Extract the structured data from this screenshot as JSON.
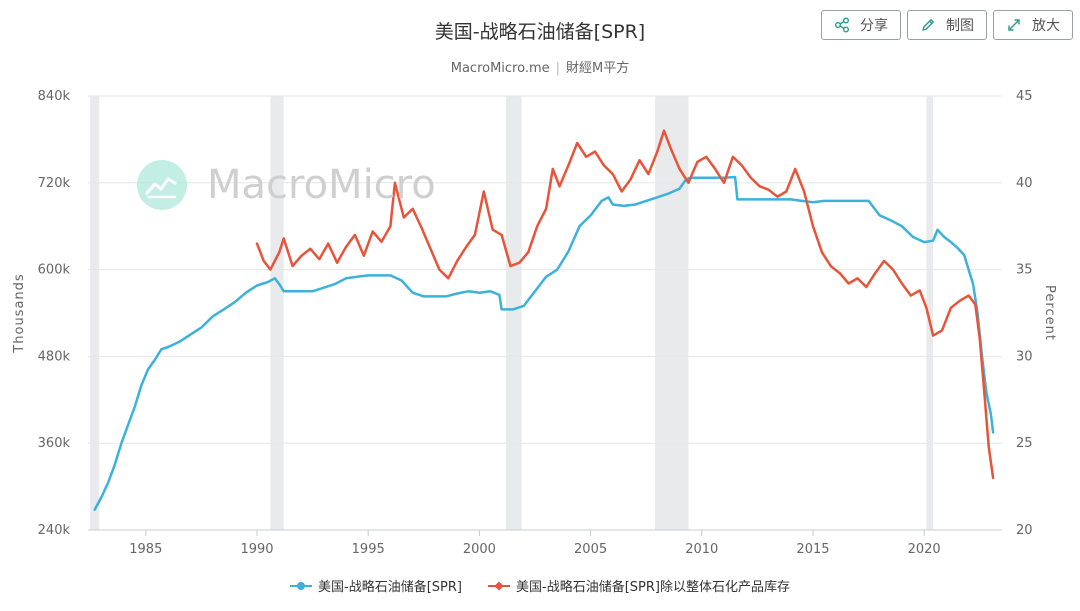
{
  "title": "美国-战略石油储备[SPR]",
  "subtitle": {
    "site": "MacroMicro.me",
    "separator": "|",
    "brand": "財經M平方"
  },
  "watermark": "MacroMicro",
  "toolbar": {
    "share_label": "分享",
    "chart_label": "制图",
    "enlarge_label": "放大"
  },
  "legend": [
    {
      "name": "美国-战略石油储备[SPR]",
      "color": "#3cb1dc"
    },
    {
      "name": "美国-战略石油储备[SPR]除以整体石化产品库存",
      "color": "#e8543a"
    }
  ],
  "chart_data": {
    "type": "line",
    "x_axis": {
      "ticks": [
        "1985",
        "1990",
        "1995",
        "2000",
        "2005",
        "2010",
        "2015",
        "2020"
      ],
      "range": [
        1982.4,
        2023.5
      ]
    },
    "y_left": {
      "label": "Thousands",
      "ticks": [
        "240k",
        "360k",
        "480k",
        "600k",
        "720k",
        "840k"
      ],
      "range": [
        240,
        840
      ]
    },
    "y_right": {
      "label": "Percent",
      "ticks": [
        "20",
        "25",
        "30",
        "35",
        "40",
        "45"
      ],
      "range": [
        20,
        45
      ]
    },
    "recession_bands": [
      [
        1982.5,
        1982.9
      ],
      [
        1990.6,
        1991.2
      ],
      [
        2001.2,
        2001.9
      ],
      [
        2007.9,
        2009.4
      ],
      [
        2020.1,
        2020.4
      ]
    ],
    "series": [
      {
        "name": "美国-战略石油储备[SPR]",
        "axis": "left",
        "color": "#3cb1dc",
        "points": [
          [
            1982.7,
            268
          ],
          [
            1983.0,
            285
          ],
          [
            1983.3,
            305
          ],
          [
            1983.6,
            330
          ],
          [
            1983.9,
            360
          ],
          [
            1984.2,
            385
          ],
          [
            1984.5,
            410
          ],
          [
            1984.8,
            440
          ],
          [
            1985.1,
            462
          ],
          [
            1985.4,
            475
          ],
          [
            1985.7,
            490
          ],
          [
            1986.0,
            493
          ],
          [
            1986.5,
            500
          ],
          [
            1987.0,
            510
          ],
          [
            1987.5,
            520
          ],
          [
            1988.0,
            535
          ],
          [
            1988.5,
            545
          ],
          [
            1989.0,
            555
          ],
          [
            1989.5,
            568
          ],
          [
            1990.0,
            578
          ],
          [
            1990.5,
            583
          ],
          [
            1990.8,
            588
          ],
          [
            1991.0,
            580
          ],
          [
            1991.2,
            570
          ],
          [
            1992.0,
            570
          ],
          [
            1992.5,
            570
          ],
          [
            1993.0,
            575
          ],
          [
            1993.5,
            580
          ],
          [
            1994.0,
            588
          ],
          [
            1994.5,
            590
          ],
          [
            1995.0,
            592
          ],
          [
            1996.0,
            592
          ],
          [
            1996.5,
            585
          ],
          [
            1997.0,
            568
          ],
          [
            1997.5,
            563
          ],
          [
            1998.0,
            563
          ],
          [
            1998.5,
            563
          ],
          [
            1999.0,
            567
          ],
          [
            1999.5,
            570
          ],
          [
            2000.0,
            568
          ],
          [
            2000.5,
            570
          ],
          [
            2000.9,
            565
          ],
          [
            2001.0,
            545
          ],
          [
            2001.5,
            545
          ],
          [
            2002.0,
            550
          ],
          [
            2002.5,
            570
          ],
          [
            2003.0,
            590
          ],
          [
            2003.5,
            600
          ],
          [
            2004.0,
            625
          ],
          [
            2004.5,
            660
          ],
          [
            2005.0,
            675
          ],
          [
            2005.5,
            695
          ],
          [
            2005.8,
            700
          ],
          [
            2006.0,
            690
          ],
          [
            2006.5,
            688
          ],
          [
            2007.0,
            690
          ],
          [
            2007.5,
            695
          ],
          [
            2008.0,
            700
          ],
          [
            2008.5,
            705
          ],
          [
            2009.0,
            712
          ],
          [
            2009.3,
            725
          ],
          [
            2009.5,
            727
          ],
          [
            2010.0,
            727
          ],
          [
            2010.5,
            727
          ],
          [
            2011.0,
            727
          ],
          [
            2011.5,
            728
          ],
          [
            2011.6,
            697
          ],
          [
            2012.0,
            697
          ],
          [
            2013.0,
            697
          ],
          [
            2014.0,
            697
          ],
          [
            2014.5,
            695
          ],
          [
            2015.0,
            693
          ],
          [
            2015.5,
            695
          ],
          [
            2016.0,
            695
          ],
          [
            2017.0,
            695
          ],
          [
            2017.5,
            695
          ],
          [
            2018.0,
            675
          ],
          [
            2018.5,
            668
          ],
          [
            2019.0,
            660
          ],
          [
            2019.5,
            645
          ],
          [
            2020.0,
            638
          ],
          [
            2020.4,
            640
          ],
          [
            2020.6,
            655
          ],
          [
            2020.9,
            645
          ],
          [
            2021.2,
            638
          ],
          [
            2021.5,
            630
          ],
          [
            2021.8,
            620
          ],
          [
            2022.0,
            600
          ],
          [
            2022.2,
            580
          ],
          [
            2022.4,
            540
          ],
          [
            2022.6,
            480
          ],
          [
            2022.8,
            430
          ],
          [
            2023.0,
            400
          ],
          [
            2023.1,
            375
          ]
        ]
      },
      {
        "name": "美国-战略石油储备[SPR]除以整体石化产品库存",
        "axis": "right",
        "color": "#e8543a",
        "points": [
          [
            1990.0,
            36.5
          ],
          [
            1990.3,
            35.5
          ],
          [
            1990.6,
            35.0
          ],
          [
            1991.0,
            36.0
          ],
          [
            1991.2,
            36.8
          ],
          [
            1991.6,
            35.2
          ],
          [
            1992.0,
            35.8
          ],
          [
            1992.4,
            36.2
          ],
          [
            1992.8,
            35.6
          ],
          [
            1993.2,
            36.5
          ],
          [
            1993.6,
            35.4
          ],
          [
            1994.0,
            36.3
          ],
          [
            1994.4,
            37.0
          ],
          [
            1994.8,
            35.8
          ],
          [
            1995.2,
            37.2
          ],
          [
            1995.6,
            36.6
          ],
          [
            1996.0,
            37.5
          ],
          [
            1996.2,
            40.0
          ],
          [
            1996.6,
            38.0
          ],
          [
            1997.0,
            38.5
          ],
          [
            1997.4,
            37.4
          ],
          [
            1997.8,
            36.2
          ],
          [
            1998.2,
            35.0
          ],
          [
            1998.6,
            34.5
          ],
          [
            1999.0,
            35.5
          ],
          [
            1999.4,
            36.3
          ],
          [
            1999.8,
            37.0
          ],
          [
            2000.2,
            39.5
          ],
          [
            2000.6,
            37.3
          ],
          [
            2001.0,
            37.0
          ],
          [
            2001.4,
            35.2
          ],
          [
            2001.8,
            35.4
          ],
          [
            2002.2,
            36.0
          ],
          [
            2002.6,
            37.5
          ],
          [
            2003.0,
            38.5
          ],
          [
            2003.3,
            40.8
          ],
          [
            2003.6,
            39.8
          ],
          [
            2004.0,
            41.0
          ],
          [
            2004.4,
            42.3
          ],
          [
            2004.8,
            41.5
          ],
          [
            2005.2,
            41.8
          ],
          [
            2005.6,
            41.0
          ],
          [
            2006.0,
            40.5
          ],
          [
            2006.4,
            39.5
          ],
          [
            2006.8,
            40.2
          ],
          [
            2007.2,
            41.3
          ],
          [
            2007.6,
            40.5
          ],
          [
            2008.0,
            41.8
          ],
          [
            2008.3,
            43.0
          ],
          [
            2008.6,
            42.0
          ],
          [
            2009.0,
            40.8
          ],
          [
            2009.4,
            40.0
          ],
          [
            2009.8,
            41.2
          ],
          [
            2010.2,
            41.5
          ],
          [
            2010.6,
            40.8
          ],
          [
            2011.0,
            40.0
          ],
          [
            2011.4,
            41.5
          ],
          [
            2011.8,
            41.0
          ],
          [
            2012.2,
            40.3
          ],
          [
            2012.6,
            39.8
          ],
          [
            2013.0,
            39.6
          ],
          [
            2013.4,
            39.2
          ],
          [
            2013.8,
            39.5
          ],
          [
            2014.2,
            40.8
          ],
          [
            2014.6,
            39.5
          ],
          [
            2015.0,
            37.5
          ],
          [
            2015.4,
            36.0
          ],
          [
            2015.8,
            35.2
          ],
          [
            2016.2,
            34.8
          ],
          [
            2016.6,
            34.2
          ],
          [
            2017.0,
            34.5
          ],
          [
            2017.4,
            34.0
          ],
          [
            2017.8,
            34.8
          ],
          [
            2018.2,
            35.5
          ],
          [
            2018.6,
            35.0
          ],
          [
            2019.0,
            34.2
          ],
          [
            2019.4,
            33.5
          ],
          [
            2019.8,
            33.8
          ],
          [
            2020.1,
            32.8
          ],
          [
            2020.4,
            31.2
          ],
          [
            2020.8,
            31.5
          ],
          [
            2021.2,
            32.8
          ],
          [
            2021.6,
            33.2
          ],
          [
            2022.0,
            33.5
          ],
          [
            2022.3,
            33.0
          ],
          [
            2022.5,
            31.0
          ],
          [
            2022.7,
            28.0
          ],
          [
            2022.9,
            24.8
          ],
          [
            2023.1,
            23.0
          ]
        ]
      }
    ]
  }
}
